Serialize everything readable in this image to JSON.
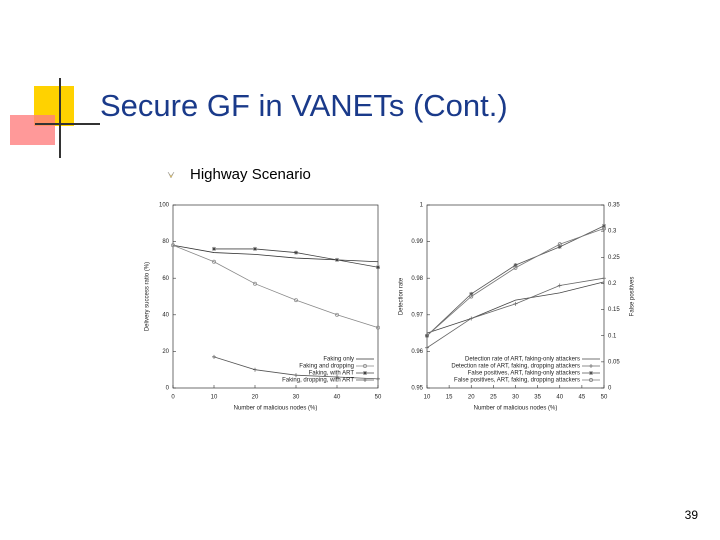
{
  "slide": {
    "title": "Secure GF in VANETs (Cont.)",
    "bullet": "Highway Scenario",
    "page_number": 39
  },
  "chart_data": [
    {
      "type": "line",
      "xlabel": "Number of malicious nodes (%)",
      "ylabel": "Delivery success ratio (%)",
      "x": [
        0,
        10,
        20,
        30,
        40,
        50
      ],
      "xlim": [
        0,
        50
      ],
      "xticks": [
        0,
        10,
        20,
        30,
        40,
        50
      ],
      "ylim": [
        0,
        100
      ],
      "yticks": [
        0,
        20,
        40,
        60,
        80,
        100
      ],
      "legend": "lower right",
      "series": [
        {
          "name": "Faking only",
          "color": "#333333",
          "marker": "none",
          "values": [
            78,
            74,
            73,
            71,
            70,
            69
          ]
        },
        {
          "name": "Faking and dropping",
          "color": "#888888",
          "marker": "circle",
          "values": [
            78,
            69,
            57,
            48,
            40,
            33
          ]
        },
        {
          "name": "Faking, with ART",
          "color": "#444444",
          "marker": "star",
          "values": [
            null,
            76,
            76,
            74,
            70,
            66
          ]
        },
        {
          "name": "Faking, dropping, with ART",
          "color": "#555555",
          "marker": "plus",
          "values": [
            null,
            17,
            10,
            7,
            6,
            5
          ]
        }
      ]
    },
    {
      "type": "line",
      "xlabel": "Number of malicious nodes (%)",
      "ylabel": "Detection rate",
      "y2label": "False positives",
      "x": [
        10,
        20,
        30,
        40,
        50
      ],
      "xlim": [
        10,
        50
      ],
      "xticks": [
        10,
        15,
        20,
        25,
        30,
        35,
        40,
        45,
        50
      ],
      "ylim": [
        0.95,
        1
      ],
      "yticks": [
        0.95,
        0.96,
        0.97,
        0.98,
        0.99,
        1
      ],
      "y2lim": [
        0,
        0.35
      ],
      "y2ticks": [
        0,
        0.05,
        0.1,
        0.15,
        0.2,
        0.25,
        0.3,
        0.35
      ],
      "legend": "lower right",
      "series": [
        {
          "name": "Detection rate of ART, faking-only attackers",
          "color": "#444444",
          "marker": "none",
          "values": [
            0.965,
            0.969,
            0.974,
            0.976,
            0.979
          ]
        },
        {
          "name": "Detection rate of ART, faking, dropping attackers",
          "color": "#666666",
          "marker": "plus",
          "values": [
            0.961,
            0.969,
            0.973,
            0.978,
            0.98
          ]
        },
        {
          "name": "False positives, ART, faking-only attackers",
          "color": "#555555",
          "marker": "star",
          "axis": "y2",
          "values": [
            0.1,
            0.18,
            0.235,
            0.27,
            0.31
          ]
        },
        {
          "name": "False positives, ART, faking, dropping attackers",
          "color": "#777777",
          "marker": "circle",
          "axis": "y2",
          "values": [
            0.1,
            0.175,
            0.23,
            0.275,
            0.305
          ]
        }
      ]
    }
  ]
}
